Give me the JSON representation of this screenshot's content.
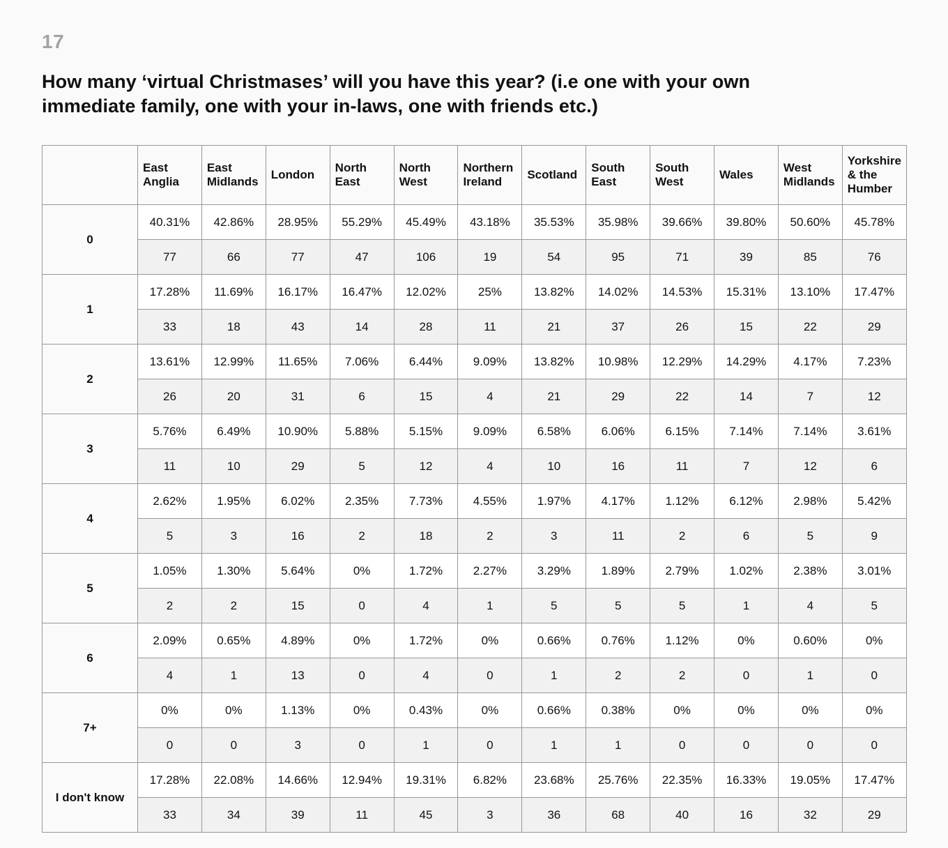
{
  "page": {
    "number": "17",
    "title": "How many ‘virtual Christmases’ will you have this year? (i.e one with your own immediate family, one with your in-laws, one with friends etc.)"
  },
  "table": {
    "columns": [
      "East Anglia",
      "East Midlands",
      "London",
      "North East",
      "North West",
      "Northern Ireland",
      "Scotland",
      "South East",
      "South West",
      "Wales",
      "West Midlands",
      "Yorkshire & the Humber"
    ],
    "rows": [
      {
        "label": "0",
        "percents": [
          "40.31%",
          "42.86%",
          "28.95%",
          "55.29%",
          "45.49%",
          "43.18%",
          "35.53%",
          "35.98%",
          "39.66%",
          "39.80%",
          "50.60%",
          "45.78%"
        ],
        "counts": [
          "77",
          "66",
          "77",
          "47",
          "106",
          "19",
          "54",
          "95",
          "71",
          "39",
          "85",
          "76"
        ]
      },
      {
        "label": "1",
        "percents": [
          "17.28%",
          "11.69%",
          "16.17%",
          "16.47%",
          "12.02%",
          "25%",
          "13.82%",
          "14.02%",
          "14.53%",
          "15.31%",
          "13.10%",
          "17.47%"
        ],
        "counts": [
          "33",
          "18",
          "43",
          "14",
          "28",
          "11",
          "21",
          "37",
          "26",
          "15",
          "22",
          "29"
        ]
      },
      {
        "label": "2",
        "percents": [
          "13.61%",
          "12.99%",
          "11.65%",
          "7.06%",
          "6.44%",
          "9.09%",
          "13.82%",
          "10.98%",
          "12.29%",
          "14.29%",
          "4.17%",
          "7.23%"
        ],
        "counts": [
          "26",
          "20",
          "31",
          "6",
          "15",
          "4",
          "21",
          "29",
          "22",
          "14",
          "7",
          "12"
        ]
      },
      {
        "label": "3",
        "percents": [
          "5.76%",
          "6.49%",
          "10.90%",
          "5.88%",
          "5.15%",
          "9.09%",
          "6.58%",
          "6.06%",
          "6.15%",
          "7.14%",
          "7.14%",
          "3.61%"
        ],
        "counts": [
          "11",
          "10",
          "29",
          "5",
          "12",
          "4",
          "10",
          "16",
          "11",
          "7",
          "12",
          "6"
        ]
      },
      {
        "label": "4",
        "percents": [
          "2.62%",
          "1.95%",
          "6.02%",
          "2.35%",
          "7.73%",
          "4.55%",
          "1.97%",
          "4.17%",
          "1.12%",
          "6.12%",
          "2.98%",
          "5.42%"
        ],
        "counts": [
          "5",
          "3",
          "16",
          "2",
          "18",
          "2",
          "3",
          "11",
          "2",
          "6",
          "5",
          "9"
        ]
      },
      {
        "label": "5",
        "percents": [
          "1.05%",
          "1.30%",
          "5.64%",
          "0%",
          "1.72%",
          "2.27%",
          "3.29%",
          "1.89%",
          "2.79%",
          "1.02%",
          "2.38%",
          "3.01%"
        ],
        "counts": [
          "2",
          "2",
          "15",
          "0",
          "4",
          "1",
          "5",
          "5",
          "5",
          "1",
          "4",
          "5"
        ]
      },
      {
        "label": "6",
        "percents": [
          "2.09%",
          "0.65%",
          "4.89%",
          "0%",
          "1.72%",
          "0%",
          "0.66%",
          "0.76%",
          "1.12%",
          "0%",
          "0.60%",
          "0%"
        ],
        "counts": [
          "4",
          "1",
          "13",
          "0",
          "4",
          "0",
          "1",
          "2",
          "2",
          "0",
          "1",
          "0"
        ]
      },
      {
        "label": "7+",
        "percents": [
          "0%",
          "0%",
          "1.13%",
          "0%",
          "0.43%",
          "0%",
          "0.66%",
          "0.38%",
          "0%",
          "0%",
          "0%",
          "0%"
        ],
        "counts": [
          "0",
          "0",
          "3",
          "0",
          "1",
          "0",
          "1",
          "1",
          "0",
          "0",
          "0",
          "0"
        ]
      },
      {
        "label": "I don't know",
        "percents": [
          "17.28%",
          "22.08%",
          "14.66%",
          "12.94%",
          "19.31%",
          "6.82%",
          "23.68%",
          "25.76%",
          "22.35%",
          "16.33%",
          "19.05%",
          "17.47%"
        ],
        "counts": [
          "33",
          "34",
          "39",
          "11",
          "45",
          "3",
          "36",
          "68",
          "40",
          "16",
          "32",
          "29"
        ]
      }
    ]
  }
}
